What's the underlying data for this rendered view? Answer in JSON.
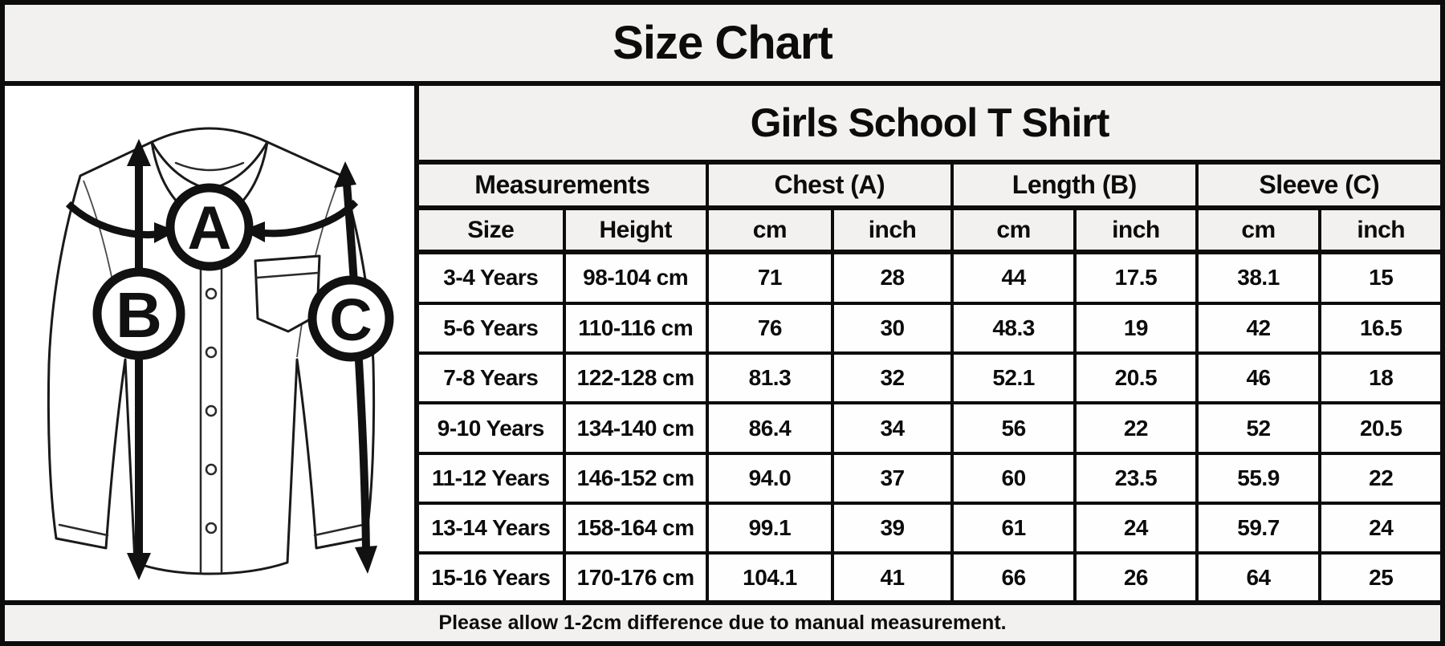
{
  "page_title": "Size Chart",
  "diagram": {
    "markers": [
      "A",
      "B",
      "C"
    ]
  },
  "chart_data": {
    "type": "table",
    "title": "Size Chart",
    "subtitle": "Girls School T Shirt",
    "column_groups": [
      "Measurements",
      "Chest (A)",
      "Length (B)",
      "Sleeve (C)"
    ],
    "sub_columns": [
      "Size",
      "Height",
      "cm",
      "inch",
      "cm",
      "inch",
      "cm",
      "inch"
    ],
    "rows": [
      [
        "3-4 Years",
        "98-104 cm",
        "71",
        "28",
        "44",
        "17.5",
        "38.1",
        "15"
      ],
      [
        "5-6 Years",
        "110-116 cm",
        "76",
        "30",
        "48.3",
        "19",
        "42",
        "16.5"
      ],
      [
        "7-8 Years",
        "122-128 cm",
        "81.3",
        "32",
        "52.1",
        "20.5",
        "46",
        "18"
      ],
      [
        "9-10 Years",
        "134-140 cm",
        "86.4",
        "34",
        "56",
        "22",
        "52",
        "20.5"
      ],
      [
        "11-12 Years",
        "146-152 cm",
        "94.0",
        "37",
        "60",
        "23.5",
        "55.9",
        "22"
      ],
      [
        "13-14 Years",
        "158-164 cm",
        "99.1",
        "39",
        "61",
        "24",
        "59.7",
        "24"
      ],
      [
        "15-16 Years",
        "170-176 cm",
        "104.1",
        "41",
        "66",
        "26",
        "64",
        "25"
      ]
    ],
    "footnote": "Please allow 1-2cm difference due to manual measurement."
  },
  "colors": {
    "border": "#0c0c0c",
    "header_bg": "#f2f1ef",
    "cell_bg": "#fefefe",
    "text": "#0c0c0c"
  }
}
